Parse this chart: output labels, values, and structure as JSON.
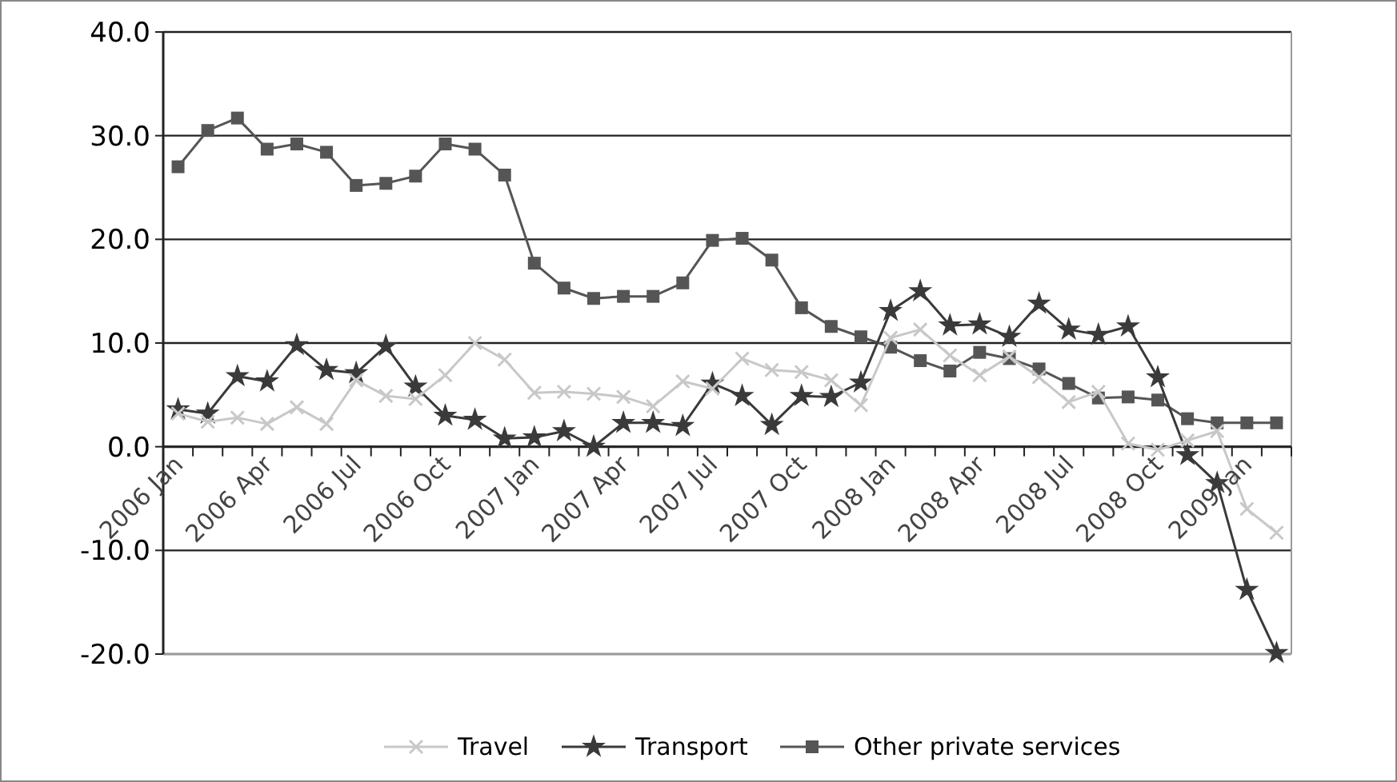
{
  "chart_data": {
    "type": "line",
    "categories": [
      "2006 Jan",
      null,
      null,
      "2006 Apr",
      null,
      null,
      "2006 Jul",
      null,
      null,
      "2006 Oct",
      null,
      null,
      "2007 Jan",
      null,
      null,
      "2007 Apr",
      null,
      null,
      "2007 Jul",
      null,
      null,
      "2007 Oct",
      null,
      null,
      "2008 Jan",
      null,
      null,
      "2008 Apr",
      null,
      null,
      "2008 Jul",
      null,
      null,
      "2008 Oct",
      null,
      null,
      "2009 Jan",
      null
    ],
    "series": [
      {
        "name": "Travel",
        "color": "#c8c8c8",
        "marker": "cross",
        "values": [
          3.2,
          2.4,
          2.8,
          2.2,
          3.8,
          2.2,
          6.4,
          4.9,
          4.6,
          6.9,
          10.0,
          8.4,
          5.2,
          5.3,
          5.1,
          4.8,
          3.9,
          6.3,
          5.6,
          8.5,
          7.4,
          7.2,
          6.4,
          4.0,
          10.5,
          11.3,
          8.8,
          6.9,
          8.7,
          6.7,
          4.3,
          5.3,
          0.3,
          -0.3,
          0.6,
          1.5,
          -6.0,
          -8.3
        ]
      },
      {
        "name": "Transport",
        "color": "#3a3a3a",
        "marker": "star",
        "values": [
          3.6,
          3.2,
          6.8,
          6.3,
          9.8,
          7.4,
          7.1,
          9.7,
          5.8,
          3.0,
          2.6,
          0.8,
          0.9,
          1.5,
          0.0,
          2.3,
          2.3,
          2.0,
          6.1,
          4.9,
          2.1,
          4.9,
          4.8,
          6.2,
          13.1,
          15.0,
          11.7,
          11.8,
          10.6,
          13.8,
          11.3,
          10.8,
          11.6,
          6.7,
          -0.8,
          -3.5,
          -13.8,
          -19.9
        ]
      },
      {
        "name": "Other private services",
        "color": "#555555",
        "marker": "square",
        "values": [
          27.0,
          30.5,
          31.7,
          28.7,
          29.2,
          28.4,
          25.2,
          25.4,
          26.1,
          29.2,
          28.7,
          26.2,
          17.7,
          15.3,
          14.3,
          14.5,
          14.5,
          15.8,
          19.9,
          20.1,
          18.0,
          13.4,
          11.6,
          10.6,
          9.6,
          8.3,
          7.3,
          9.1,
          8.5,
          7.5,
          6.1,
          4.7,
          4.8,
          4.5,
          2.7,
          2.3,
          2.3,
          2.3
        ]
      }
    ],
    "ylim": [
      -20,
      40
    ],
    "yticks": [
      {
        "value": -20,
        "label": "-20.0"
      },
      {
        "value": -10,
        "label": "-10.0"
      },
      {
        "value": 0,
        "label": "0.0"
      },
      {
        "value": 10,
        "label": "10.0"
      },
      {
        "value": 20,
        "label": "20.0"
      },
      {
        "value": 30,
        "label": "30.0"
      },
      {
        "value": 40,
        "label": "40.0"
      }
    ],
    "grid": "y",
    "legend": "bottom"
  }
}
